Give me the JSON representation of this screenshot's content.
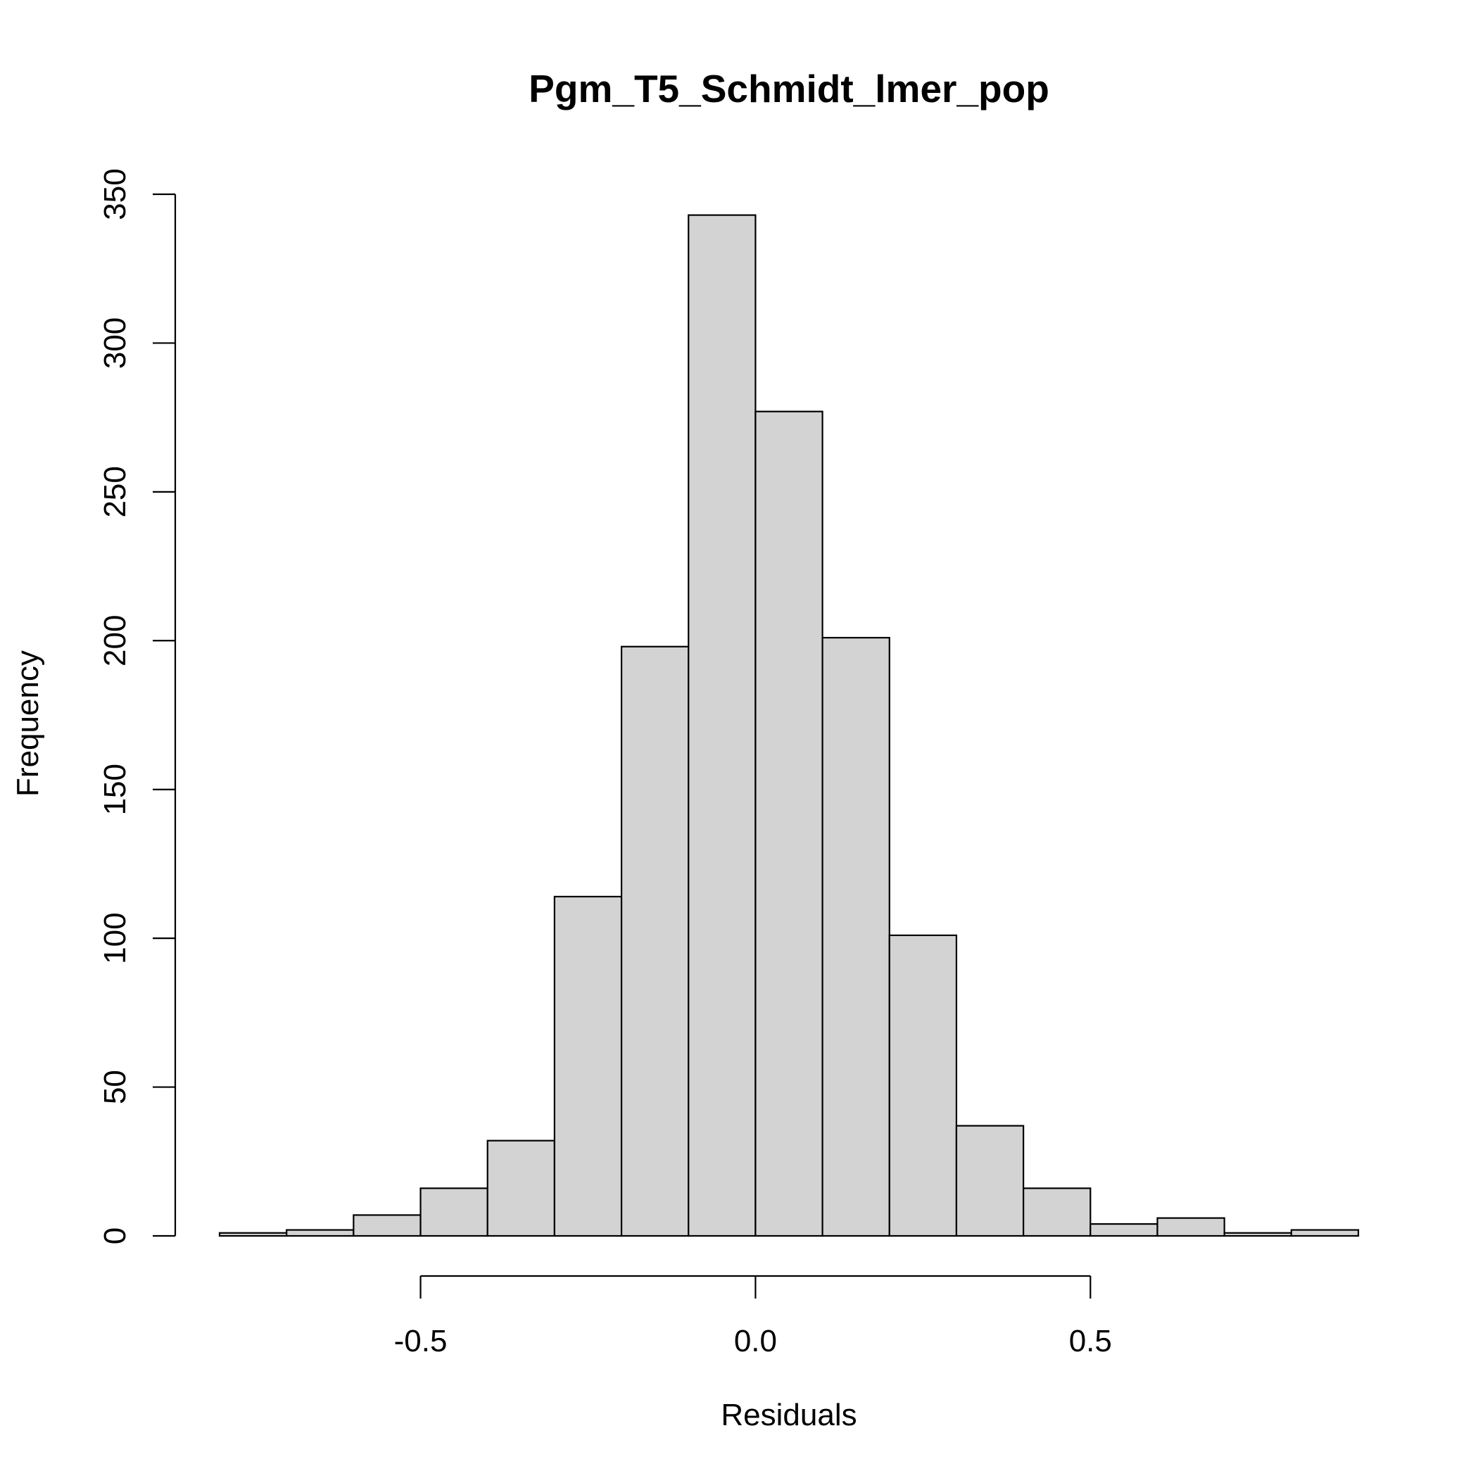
{
  "chart_data": {
    "type": "bar",
    "subtype": "histogram",
    "title": "Pgm_T5_Schmidt_lmer_pop",
    "xlabel": "Residuals",
    "ylabel": "Frequency",
    "bin_edges": [
      -0.8,
      -0.7,
      -0.6,
      -0.5,
      -0.4,
      -0.3,
      -0.2,
      -0.1,
      0.0,
      0.1,
      0.2,
      0.3,
      0.4,
      0.5,
      0.6,
      0.7,
      0.8,
      0.9
    ],
    "values": [
      1,
      2,
      7,
      16,
      32,
      114,
      198,
      343,
      277,
      201,
      101,
      37,
      16,
      4,
      6,
      1,
      2
    ],
    "x_ticks": [
      -0.5,
      0.0,
      0.5
    ],
    "x_tick_labels": [
      "-0.5",
      "0.0",
      "0.5"
    ],
    "y_ticks": [
      0,
      50,
      100,
      150,
      200,
      250,
      300,
      350
    ],
    "y_tick_labels": [
      "0",
      "50",
      "100",
      "150",
      "200",
      "250",
      "300",
      "350"
    ],
    "xlim": [
      -0.8,
      0.9
    ],
    "ylim": [
      0,
      350
    ],
    "grid": false,
    "legend": "none",
    "colors": {
      "bar_fill": "#d3d3d3",
      "bar_stroke": "#000000",
      "axis": "#000000",
      "background": "#ffffff"
    }
  }
}
